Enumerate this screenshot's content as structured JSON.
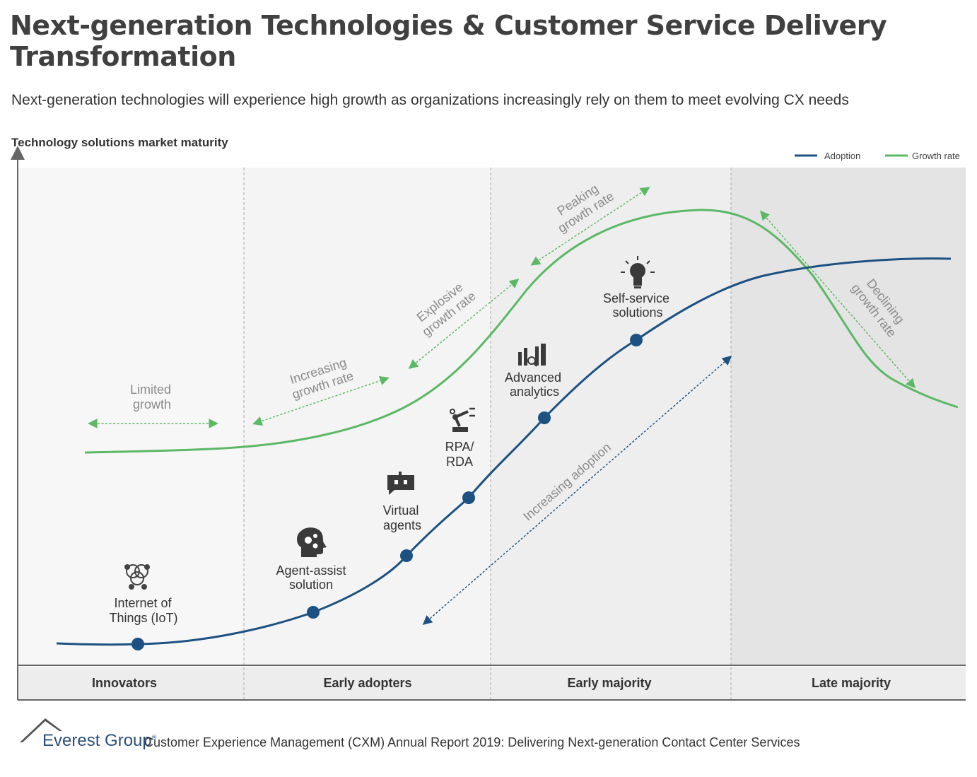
{
  "title": "Next-generation Technologies & Customer Service Delivery Transformation",
  "subtitle": "Next-generation technologies will experience high growth as organizations increasingly rely on them to meet evolving CX needs",
  "colors": {
    "adoption": "#1c5182",
    "growth": "#5bb865",
    "annotation": "#8a8a8a",
    "label": "#3a3a3a"
  },
  "chart_data": {
    "type": "line",
    "ylabel": "Technology solutions market maturity",
    "legend": {
      "position": "top-right",
      "items": [
        {
          "name": "Adoption",
          "color": "#1c5182"
        },
        {
          "name": "Growth rate",
          "color": "#5bb865"
        }
      ]
    },
    "phases": [
      "Innovators",
      "Early adopters",
      "Early majority",
      "Late majority"
    ],
    "series": [
      {
        "name": "Adoption",
        "shape": "s-curve"
      },
      {
        "name": "Growth rate",
        "shape": "bell-curve"
      }
    ],
    "technologies": [
      {
        "line1": "Internet of",
        "line2": "Things (IoT)",
        "icon": "iot-network-icon"
      },
      {
        "line1": "Agent-assist",
        "line2": "solution",
        "icon": "head-gears-icon"
      },
      {
        "line1": "Virtual",
        "line2": "agents",
        "icon": "chatbot-icon"
      },
      {
        "line1": "RPA/",
        "line2": "RDA",
        "icon": "robot-arm-icon"
      },
      {
        "line1": "Advanced",
        "line2": "analytics",
        "icon": "bar-chart-magnifier-icon"
      },
      {
        "line1": "Self-service",
        "line2": "solutions",
        "icon": "lightbulb-icon"
      }
    ],
    "annotations": {
      "limited": {
        "line1": "Limited",
        "line2": "growth"
      },
      "increasing": {
        "line1": "Increasing",
        "line2": "growth rate"
      },
      "explosive": {
        "line1": "Explosive",
        "line2": "growth rate"
      },
      "peaking": {
        "line1": "Peaking",
        "line2": "growth rate"
      },
      "declining": {
        "line1": "Declining",
        "line2": "growth rate"
      },
      "adoption": "Increasing adoption"
    }
  },
  "footer": {
    "brand": "Everest Group",
    "brand_mark": "®",
    "text": "Customer Experience Management (CXM) Annual Report 2019: Delivering Next-generation Contact Center Services"
  }
}
